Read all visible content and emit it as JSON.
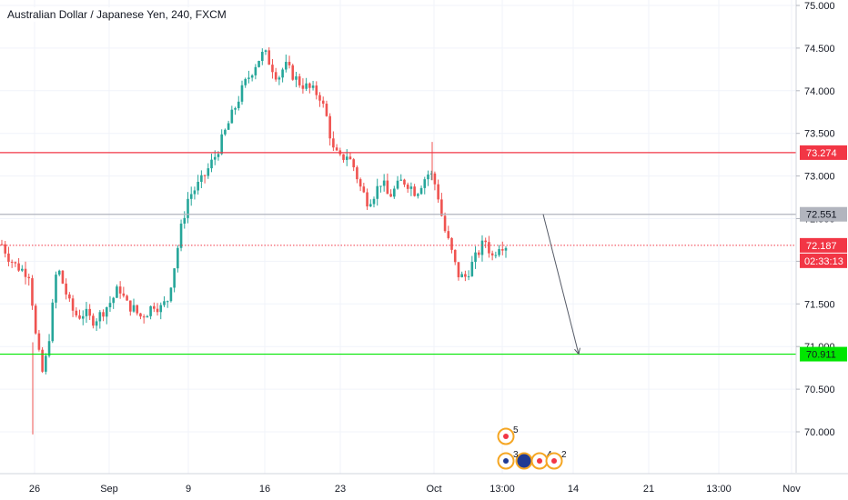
{
  "chart_data": {
    "type": "candlestick",
    "title": "Australian Dollar / Japanese Yen, 240, FXCM",
    "ylim": [
      69.5,
      75.0
    ],
    "y_ticks": [
      "75.000",
      "74.500",
      "74.000",
      "73.500",
      "73.000",
      "72.500",
      "72.000",
      "71.500",
      "71.000",
      "70.500",
      "70.000"
    ],
    "x_ticks": [
      "26",
      "Sep",
      "9",
      "16",
      "23",
      "Oct",
      "13:00",
      "14",
      "21",
      "13:00",
      "Nov"
    ],
    "grid": true,
    "horizontal_lines": [
      {
        "name": "resistance",
        "value": 73.274,
        "label": "73.274",
        "color": "#f23645"
      },
      {
        "name": "level",
        "value": 72.551,
        "label": "72.551",
        "color": "#b2b5be"
      },
      {
        "name": "current",
        "value": 72.187,
        "label": "72.187",
        "color": "#f23645",
        "dotted": true
      },
      {
        "name": "support",
        "value": 70.911,
        "label": "70.911",
        "color": "#00e600"
      }
    ],
    "countdown_label": "02:33:13",
    "projection_arrow": {
      "from": 72.551,
      "to": 70.911
    },
    "event_markers": [
      "5",
      "3",
      "4",
      "2"
    ],
    "close_path": [
      72.2,
      72.05,
      71.95,
      71.9,
      71.85,
      71.05,
      70.65,
      71.2,
      71.95,
      71.7,
      71.45,
      71.35,
      71.4,
      71.3,
      71.35,
      71.45,
      71.55,
      71.7,
      71.5,
      71.45,
      71.35,
      71.4,
      71.5,
      71.45,
      71.55,
      71.95,
      72.4,
      72.75,
      72.85,
      72.95,
      73.1,
      73.25,
      73.45,
      73.65,
      73.85,
      74.05,
      74.2,
      74.35,
      74.45,
      74.3,
      74.15,
      74.3,
      74.2,
      74.1,
      74.05,
      74.0,
      73.95,
      73.7,
      73.3,
      73.2,
      73.25,
      73.1,
      72.85,
      72.7,
      72.8,
      72.95,
      72.75,
      72.85,
      72.95,
      72.9,
      72.8,
      72.95,
      73.05,
      72.85,
      72.4,
      72.15,
      71.85,
      71.8,
      71.95,
      72.1,
      72.25,
      72.05,
      72.2,
      72.19
    ]
  }
}
